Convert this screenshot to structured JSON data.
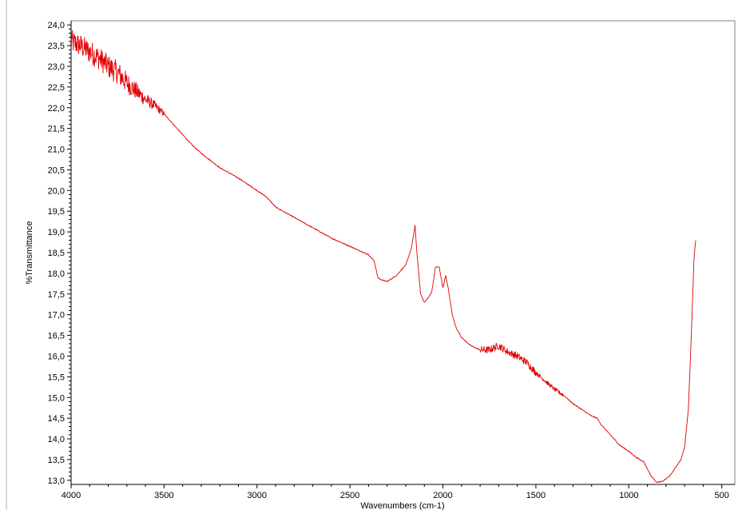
{
  "chart_data": {
    "type": "line",
    "xlabel": "Wavenumbers (cm-1)",
    "ylabel": "%Transmittance",
    "xlim": [
      4000,
      430
    ],
    "ylim": [
      12.9,
      24.1
    ],
    "x_reversed": true,
    "x_ticks": [
      4000,
      3500,
      3000,
      2500,
      2000,
      1500,
      1000,
      500
    ],
    "x_tick_labels": [
      "4000",
      "3500",
      "3000",
      "2500",
      "2000",
      "1500",
      "1000",
      "500"
    ],
    "y_ticks": [
      13.0,
      13.5,
      14.0,
      14.5,
      15.0,
      15.5,
      16.0,
      16.5,
      17.0,
      17.5,
      18.0,
      18.5,
      19.0,
      19.5,
      20.0,
      20.5,
      21.0,
      21.5,
      22.0,
      22.5,
      23.0,
      23.5,
      24.0
    ],
    "y_tick_labels": [
      "13,0",
      "13,5",
      "14,0",
      "14,5",
      "15,0",
      "15,5",
      "16,0",
      "16,5",
      "17,0",
      "17,5",
      "18,0",
      "18,5",
      "19,0",
      "19,5",
      "20,0",
      "20,5",
      "21,0",
      "21,5",
      "22,0",
      "22,5",
      "23,0",
      "23,5",
      "24,0"
    ],
    "grid": false,
    "colors": {
      "series": "#e00000",
      "axes": "#000000",
      "frame": "#808080"
    },
    "series": [
      {
        "values": [
          [
            4000,
            23.6
          ],
          [
            3950,
            23.5
          ],
          [
            3900,
            23.35
          ],
          [
            3850,
            23.2
          ],
          [
            3800,
            23.0
          ],
          [
            3750,
            22.85
          ],
          [
            3700,
            22.6
          ],
          [
            3650,
            22.4
          ],
          [
            3600,
            22.2
          ],
          [
            3550,
            22.05
          ],
          [
            3500,
            21.85
          ],
          [
            3450,
            21.6
          ],
          [
            3400,
            21.35
          ],
          [
            3350,
            21.1
          ],
          [
            3300,
            20.9
          ],
          [
            3200,
            20.55
          ],
          [
            3100,
            20.3
          ],
          [
            3050,
            20.15
          ],
          [
            3000,
            20.0
          ],
          [
            2950,
            19.85
          ],
          [
            2920,
            19.7
          ],
          [
            2900,
            19.6
          ],
          [
            2800,
            19.35
          ],
          [
            2700,
            19.1
          ],
          [
            2600,
            18.85
          ],
          [
            2500,
            18.65
          ],
          [
            2400,
            18.45
          ],
          [
            2370,
            18.3
          ],
          [
            2350,
            17.9
          ],
          [
            2335,
            17.85
          ],
          [
            2300,
            17.8
          ],
          [
            2250,
            17.95
          ],
          [
            2200,
            18.2
          ],
          [
            2170,
            18.6
          ],
          [
            2150,
            19.15
          ],
          [
            2140,
            18.5
          ],
          [
            2120,
            17.5
          ],
          [
            2100,
            17.3
          ],
          [
            2080,
            17.4
          ],
          [
            2060,
            17.55
          ],
          [
            2040,
            18.15
          ],
          [
            2020,
            18.15
          ],
          [
            2000,
            17.65
          ],
          [
            1985,
            17.95
          ],
          [
            1970,
            17.6
          ],
          [
            1950,
            17.0
          ],
          [
            1930,
            16.7
          ],
          [
            1900,
            16.45
          ],
          [
            1850,
            16.25
          ],
          [
            1800,
            16.15
          ],
          [
            1750,
            16.15
          ],
          [
            1700,
            16.25
          ],
          [
            1650,
            16.1
          ],
          [
            1600,
            16.0
          ],
          [
            1550,
            15.85
          ],
          [
            1500,
            15.6
          ],
          [
            1450,
            15.4
          ],
          [
            1400,
            15.2
          ],
          [
            1350,
            15.05
          ],
          [
            1300,
            14.85
          ],
          [
            1250,
            14.7
          ],
          [
            1200,
            14.55
          ],
          [
            1170,
            14.5
          ],
          [
            1150,
            14.35
          ],
          [
            1100,
            14.1
          ],
          [
            1050,
            13.85
          ],
          [
            1000,
            13.7
          ],
          [
            960,
            13.55
          ],
          [
            920,
            13.45
          ],
          [
            880,
            13.1
          ],
          [
            850,
            12.95
          ],
          [
            820,
            12.97
          ],
          [
            780,
            13.1
          ],
          [
            750,
            13.3
          ],
          [
            720,
            13.5
          ],
          [
            700,
            13.8
          ],
          [
            680,
            14.7
          ],
          [
            670,
            15.8
          ],
          [
            660,
            17.0
          ],
          [
            650,
            18.3
          ],
          [
            645,
            18.6
          ],
          [
            640,
            18.8
          ]
        ]
      }
    ]
  }
}
